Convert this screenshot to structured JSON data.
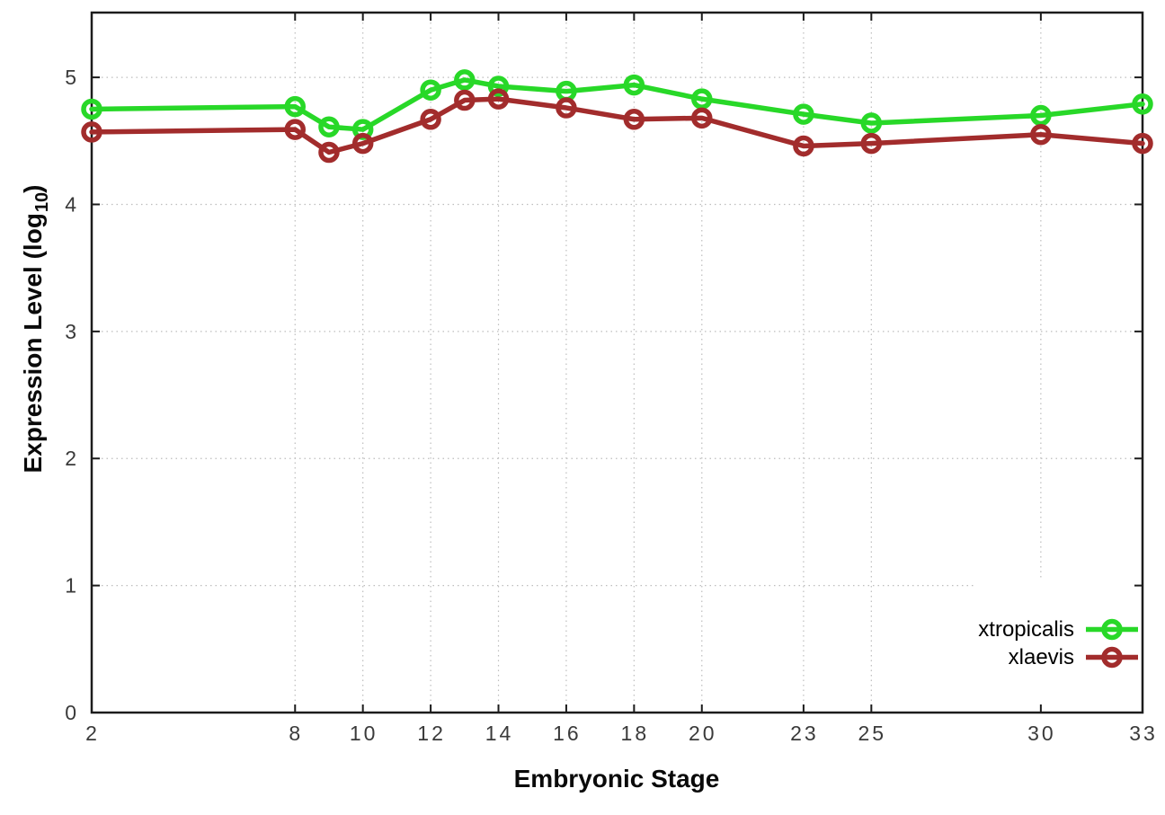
{
  "figure": {
    "xlabel": "Embryonic Stage",
    "ylabel": "Expression Level (log10)",
    "ylabel_parts": {
      "prefix": "Expression Level (log",
      "sub": "10",
      "suffix": ")"
    }
  },
  "legend": {
    "items": [
      {
        "label": "xtropicalis",
        "color": "#28d828"
      },
      {
        "label": "xlaevis",
        "color": "#a22c2c"
      }
    ],
    "position": "bottom-right"
  },
  "chart_data": {
    "type": "line",
    "title": "",
    "xlabel": "Embryonic Stage",
    "ylabel": "Expression Level (log10)",
    "x": [
      2,
      8,
      9,
      10,
      12,
      13,
      14,
      16,
      18,
      20,
      23,
      25,
      30,
      33
    ],
    "series": [
      {
        "name": "xtropicalis",
        "color": "#28d828",
        "values": [
          4.75,
          4.77,
          4.61,
          4.59,
          4.9,
          4.98,
          4.93,
          4.89,
          4.94,
          4.83,
          4.71,
          4.64,
          4.7,
          4.79
        ]
      },
      {
        "name": "xlaevis",
        "color": "#a22c2c",
        "values": [
          4.57,
          4.59,
          4.41,
          4.48,
          4.67,
          4.82,
          4.83,
          4.76,
          4.67,
          4.68,
          4.46,
          4.48,
          4.55,
          4.48
        ]
      }
    ],
    "x_ticks": [
      2,
      8,
      10,
      12,
      14,
      16,
      18,
      20,
      23,
      25,
      30,
      33
    ],
    "x_tick_labels": [
      "2",
      "8",
      "10",
      "12",
      "14",
      "16",
      "18",
      "20",
      "23",
      "25",
      "30",
      "33"
    ],
    "y_ticks": [
      0,
      1,
      2,
      3,
      4,
      5
    ],
    "y_tick_labels": [
      "0",
      "1",
      "2",
      "3",
      "4",
      "5"
    ],
    "xlim": [
      2,
      33
    ],
    "ylim": [
      0,
      5.51
    ],
    "grid": true,
    "grid_style": "dotted",
    "marker": "open-circle",
    "legend_position": "bottom-right"
  }
}
